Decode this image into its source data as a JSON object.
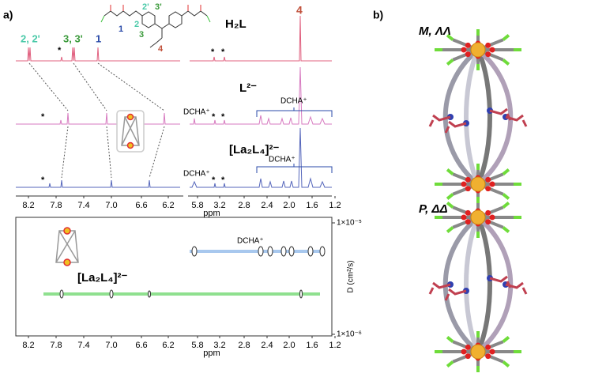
{
  "panel_a": {
    "label": "a)",
    "ligand_labels": {
      "n1": "1",
      "n2": "2",
      "n3": "3",
      "n2p": "2'",
      "n3p": "3'",
      "n4": "4"
    },
    "nmr": {
      "spectra": [
        {
          "label": "H₂L",
          "peak_labels": [
            "2, 2'",
            "*",
            "3, 3'",
            "1",
            "*",
            "*",
            "4"
          ]
        },
        {
          "label": "L²⁻",
          "peak_labels": [
            "*",
            "DCHA⁺",
            "*",
            "*",
            "DCHA⁺"
          ]
        },
        {
          "label": "[La₂L₄]²⁻",
          "peak_labels": [
            "*",
            "DCHA⁺",
            "*",
            "*",
            "DCHA⁺"
          ]
        }
      ],
      "xticks": [
        "8.2",
        "7.8",
        "7.4",
        "7.0",
        "6.6",
        "6.2",
        "5.8",
        "3.2",
        "2.8",
        "2.4",
        "2.0",
        "1.6",
        "1.2"
      ],
      "xlabel": "ppm"
    },
    "dosy": {
      "labels": [
        "DCHA⁺",
        "[La₂L₄]²⁻"
      ],
      "xticks": [
        "8.2",
        "7.8",
        "7.4",
        "7.0",
        "6.6",
        "6.2",
        "5.8",
        "3.2",
        "2.8",
        "2.4",
        "2.0",
        "1.6",
        "1.2"
      ],
      "xlabel": "ppm",
      "yticks": [
        "1×10⁻⁵",
        "1×10⁻⁶"
      ],
      "ylabel": "D (cm²/s)"
    }
  },
  "panel_b": {
    "label": "b)",
    "structures": [
      "M, ΛΛ",
      "P, ΔΔ"
    ]
  }
}
